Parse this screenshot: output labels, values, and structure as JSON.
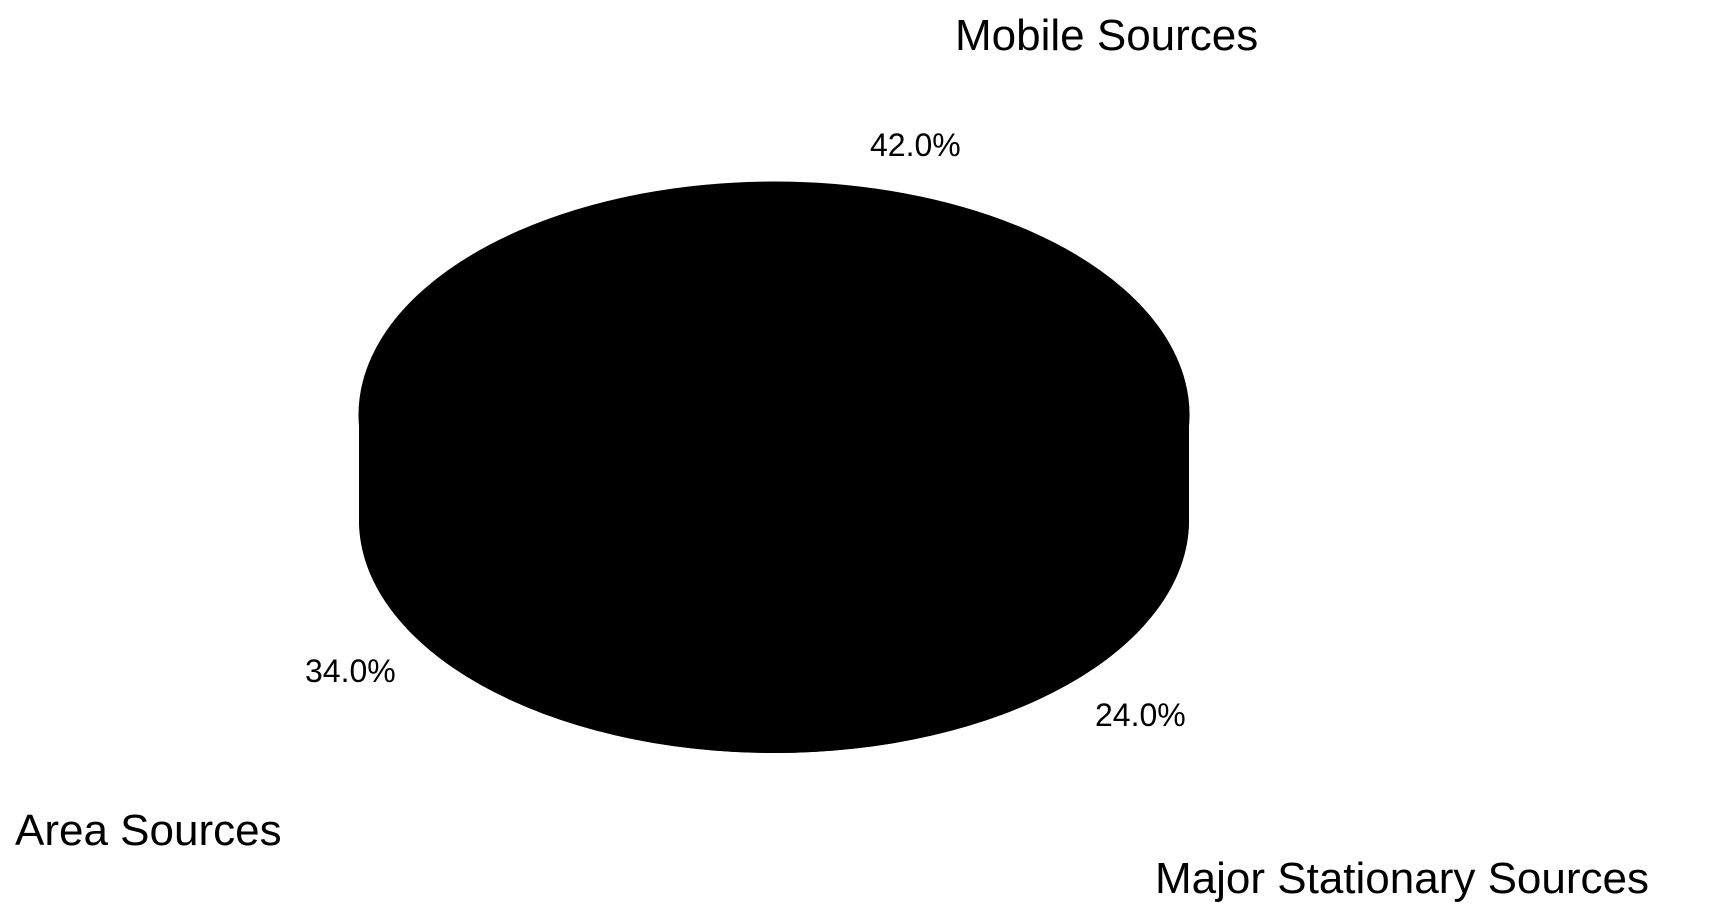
{
  "chart_data": {
    "type": "pie",
    "style": "3d",
    "slices": [
      {
        "label": "Mobile Sources",
        "value": 42.0,
        "value_label": "42.0%"
      },
      {
        "label": "Major Stationary Sources",
        "value": 24.0,
        "value_label": "24.0%"
      },
      {
        "label": "Area Sources",
        "value": 34.0,
        "value_label": "34.0%"
      }
    ],
    "fill_color": "#000000",
    "legend": "none"
  }
}
